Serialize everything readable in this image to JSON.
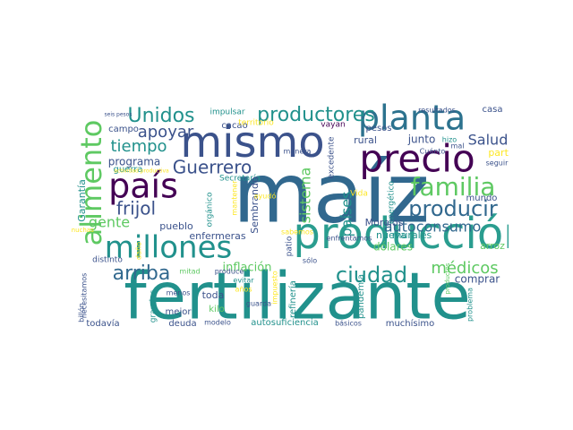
{
  "word_cloud": {
    "palette": [
      "#440154",
      "#3b528b",
      "#21918c",
      "#5ec962",
      "#fde725"
    ],
    "words": [
      {
        "text": "maíz",
        "color": "#31688e"
      },
      {
        "text": "fertilizante",
        "color": "#21918c"
      },
      {
        "text": "mismo",
        "color": "#3b528b"
      },
      {
        "text": "producción",
        "color": "#2a9d8f"
      },
      {
        "text": "planta",
        "color": "#2c728e"
      },
      {
        "text": "precio",
        "color": "#440154"
      },
      {
        "text": "alimento",
        "color": "#5ec962"
      },
      {
        "text": "millones",
        "color": "#21918c"
      },
      {
        "text": "país",
        "color": "#440154"
      },
      {
        "text": "familia",
        "color": "#5ec962"
      },
      {
        "text": "productores",
        "color": "#21918c"
      },
      {
        "text": "producir",
        "color": "#31688e"
      },
      {
        "text": "Unidos",
        "color": "#21918c"
      },
      {
        "text": "ciudad",
        "color": "#21918c"
      },
      {
        "text": "Guerrero",
        "color": "#3b528b"
      },
      {
        "text": "arriba",
        "color": "#31688e"
      },
      {
        "text": "apoyar",
        "color": "#3b528b"
      },
      {
        "text": "tiempo",
        "color": "#21918c"
      },
      {
        "text": "frijol",
        "color": "#3b528b"
      },
      {
        "text": "autoconsumo",
        "color": "#31688e"
      },
      {
        "text": "médicos",
        "color": "#5ec962"
      },
      {
        "text": "Salud",
        "color": "#3b528b"
      },
      {
        "text": "sistema",
        "color": "#5ec962"
      },
      {
        "text": "países",
        "color": "#21918c"
      },
      {
        "text": "gente",
        "color": "#5ec962"
      },
      {
        "text": "programa",
        "color": "#3b528b"
      },
      {
        "text": "inflación",
        "color": "#5ec962"
      },
      {
        "text": "dólares",
        "color": "#5ec962"
      },
      {
        "text": "comprar",
        "color": "#3b528b"
      },
      {
        "text": "casa",
        "color": "#3b528b"
      },
      {
        "text": "rural",
        "color": "#3b528b"
      },
      {
        "text": "junto",
        "color": "#3b528b"
      },
      {
        "text": "pesos",
        "color": "#3b528b"
      },
      {
        "text": "parte",
        "color": "#fde725"
      },
      {
        "text": "arroz",
        "color": "#5ec962"
      },
      {
        "text": "mundo",
        "color": "#3b528b"
      },
      {
        "text": "Morelos",
        "color": "#3b528b"
      },
      {
        "text": "nueva",
        "color": "#21918c"
      },
      {
        "text": "murales",
        "color": "#21918c"
      },
      {
        "text": "enfermeras",
        "color": "#3b528b"
      },
      {
        "text": "pueblo",
        "color": "#3b528b"
      },
      {
        "text": "campo",
        "color": "#3b528b"
      },
      {
        "text": "guerra",
        "color": "#21918c"
      },
      {
        "text": "cacao",
        "color": "#3b528b"
      },
      {
        "text": "impulsar",
        "color": "#21918c"
      },
      {
        "text": "territorio",
        "color": "#fde725"
      },
      {
        "text": "Garantía",
        "color": "#21918c"
      },
      {
        "text": "Secretaría",
        "color": "#21918c"
      },
      {
        "text": "Sembrando",
        "color": "#3b528b"
      },
      {
        "text": "Vida",
        "color": "#fde725"
      },
      {
        "text": "Cuánto",
        "color": "#3b528b"
      },
      {
        "text": "hizo",
        "color": "#21918c"
      },
      {
        "text": "mal",
        "color": "#3b528b"
      },
      {
        "text": "seguir",
        "color": "#3b528b"
      },
      {
        "text": "resultados",
        "color": "#3b528b"
      },
      {
        "text": "vayan",
        "color": "#440154"
      },
      {
        "text": "excedente",
        "color": "#3b528b"
      },
      {
        "text": "manera",
        "color": "#3b528b"
      },
      {
        "text": "ayudó",
        "color": "#fde725"
      },
      {
        "text": "orgánico",
        "color": "#21918c"
      },
      {
        "text": "mantener",
        "color": "#fde725"
      },
      {
        "text": "energético",
        "color": "#21918c"
      },
      {
        "text": "sabemos",
        "color": "#fde725"
      },
      {
        "text": "enfrentamos",
        "color": "#3b528b"
      },
      {
        "text": "patio",
        "color": "#3b528b"
      },
      {
        "text": "sólo",
        "color": "#3b528b"
      },
      {
        "text": "distinto",
        "color": "#3b528b"
      },
      {
        "text": "daño",
        "color": "#fde725"
      },
      {
        "text": "mitad",
        "color": "#5ec962"
      },
      {
        "text": "produce",
        "color": "#3b528b"
      },
      {
        "text": "evitar",
        "color": "#21918c"
      },
      {
        "text": "años",
        "color": "#fde725"
      },
      {
        "text": "toda",
        "color": "#3b528b"
      },
      {
        "text": "kilo",
        "color": "#5ec962"
      },
      {
        "text": "mejor",
        "color": "#3b528b"
      },
      {
        "text": "deuda",
        "color": "#3b528b"
      },
      {
        "text": "menos",
        "color": "#3b528b"
      },
      {
        "text": "grandes",
        "color": "#21918c"
      },
      {
        "text": "guarda",
        "color": "#3b528b"
      },
      {
        "text": "modelo",
        "color": "#3b528b"
      },
      {
        "text": "autosuficiencia",
        "color": "#21918c"
      },
      {
        "text": "refinería",
        "color": "#21918c"
      },
      {
        "text": "pandemia",
        "color": "#21918c"
      },
      {
        "text": "muchísimo",
        "color": "#3b528b"
      },
      {
        "text": "problema",
        "color": "#21918c"
      },
      {
        "text": "básicos",
        "color": "#3b528b"
      },
      {
        "text": "todavía",
        "color": "#3b528b"
      },
      {
        "text": "billón",
        "color": "#3b528b"
      },
      {
        "text": "necesitamos",
        "color": "#3b528b"
      },
      {
        "text": "impuesto",
        "color": "#fde725"
      },
      {
        "text": "muchas",
        "color": "#fde725"
      },
      {
        "text": "actividad productiva",
        "color": "#fde725"
      },
      {
        "text": "seis pesos",
        "color": "#3b528b"
      },
      {
        "text": "productos",
        "color": "#5ec962"
      }
    ]
  }
}
